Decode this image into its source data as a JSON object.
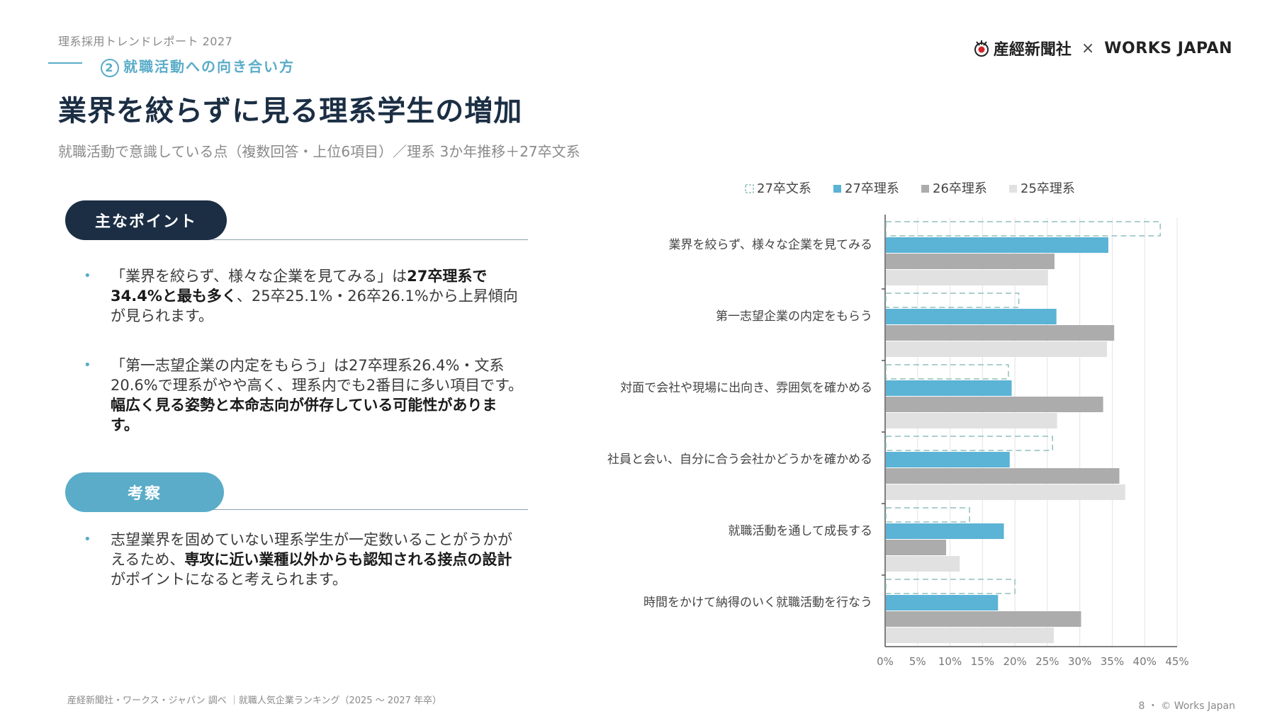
{
  "header": {
    "report_label": "理系採用トレンドレポート 2027",
    "section_number": "2",
    "section_label": "就職活動への向き合い方",
    "title": "業界を絞らずに見る理系学生の増加",
    "subtitle": "就職活動で意識している点（複数回答・上位6項目）／理系 3か年推移＋27卒文系"
  },
  "logos": {
    "sankei": "産經新聞社",
    "times": "×",
    "works": "WORKS JAPAN"
  },
  "points": {
    "heading": "主なポイント",
    "b1": {
      "t1": "「業界を絞らず、様々な企業を見てみる」は",
      "b1": "27卒理系で34.4%と最も多く",
      "t2": "、25卒25.1%・26卒26.1%から上昇傾向が見られます。"
    },
    "b2": {
      "t1": "「第一志望企業の内定をもらう」は27卒理系26.4%・文系20.6%で理系がやや高く、理系内でも2番目に多い項目です。",
      "b1": "幅広く見る姿勢と本命志向が併存している可能性があります。"
    }
  },
  "consider": {
    "heading": "考察",
    "b1": {
      "t1": "志望業界を固めていない理系学生が一定数いることがうかがえるため、",
      "b1": "専攻に近い業種以外からも認知される接点の設計",
      "t2": "がポイントになると考えられます。"
    }
  },
  "footer": {
    "source": "産経新聞社・ワークス・ジャパン 調べ ｜就職人気企業ランキング（2025 〜 2027 年卒）",
    "page": "8 ・ © Works Japan"
  },
  "colors": {
    "navy": "#1b2e44",
    "accent": "#5aacc8",
    "gray26": "#acacac",
    "gray25": "#e1e1e1",
    "dash27bun": "#8fbfbe"
  },
  "chart_data": {
    "type": "bar",
    "orientation": "horizontal",
    "categories": [
      "業界を絞らず、様々な企業を見てみる",
      "第一志望企業の内定をもらう",
      "対面で会社や現場に出向き、雰囲気を確かめる",
      "社員と会い、自分に合う会社かどうかを確かめる",
      "就職活動を通して成長する",
      "時間をかけて納得のいく就職活動を行なう"
    ],
    "series": [
      {
        "name": "27卒文系",
        "style": "dashed-outline",
        "color": "#8fbfbe",
        "values": [
          42.4,
          20.6,
          19.0,
          25.8,
          13.0,
          20.0
        ]
      },
      {
        "name": "27卒理系",
        "style": "fill",
        "color": "#5bb3d5",
        "values": [
          34.4,
          26.4,
          19.5,
          19.2,
          18.3,
          17.4
        ]
      },
      {
        "name": "26卒理系",
        "style": "fill",
        "color": "#acacac",
        "values": [
          26.1,
          35.3,
          33.6,
          36.1,
          9.4,
          30.2
        ]
      },
      {
        "name": "25卒理系",
        "style": "fill",
        "color": "#e1e1e1",
        "values": [
          25.1,
          34.2,
          26.5,
          37.0,
          11.5,
          26.0
        ]
      }
    ],
    "xlim": [
      0,
      45
    ],
    "xticks": [
      "0%",
      "5%",
      "10%",
      "15%",
      "20%",
      "25%",
      "30%",
      "35%",
      "40%",
      "45%"
    ],
    "grid": true,
    "legend_position": "top"
  }
}
